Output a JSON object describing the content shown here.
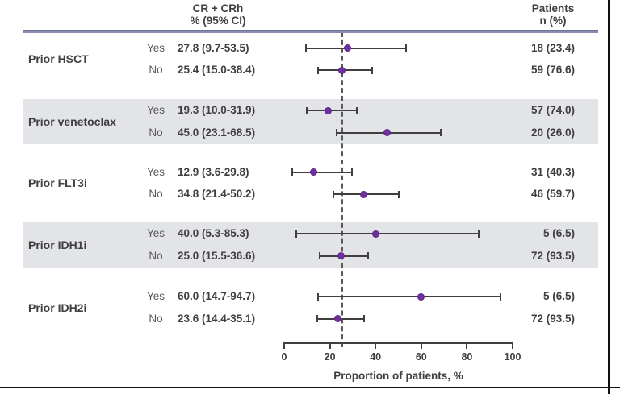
{
  "figure": {
    "value_col_header_line1": "CR + CRh",
    "value_col_header_line2": "% (95% CI)",
    "patients_col_header_line1": "Patients",
    "patients_col_header_line2": "n (%)"
  },
  "chart_data": {
    "type": "forest",
    "xlabel": "Proportion of patients, %",
    "x_ticks": [
      0,
      20,
      40,
      60,
      80,
      100
    ],
    "xlim": [
      0,
      100
    ],
    "reference_line_x": 25.4,
    "grid": false,
    "legend": "none",
    "value_column_header": "CR + CRh % (95% CI)",
    "patients_column_header": "Patients n (%)",
    "groups": [
      {
        "label": "Prior HSCT",
        "shaded": false,
        "rows": [
          {
            "subgroup": "Yes",
            "estimate": 27.8,
            "ci_low": 9.7,
            "ci_high": 53.5,
            "value_label": "27.8 (9.7-53.5)",
            "patients": "18 (23.4)"
          },
          {
            "subgroup": "No",
            "estimate": 25.4,
            "ci_low": 15.0,
            "ci_high": 38.4,
            "value_label": "25.4 (15.0-38.4)",
            "patients": "59 (76.6)"
          }
        ]
      },
      {
        "label": "Prior venetoclax",
        "shaded": true,
        "rows": [
          {
            "subgroup": "Yes",
            "estimate": 19.3,
            "ci_low": 10.0,
            "ci_high": 31.9,
            "value_label": "19.3 (10.0-31.9)",
            "patients": "57 (74.0)"
          },
          {
            "subgroup": "No",
            "estimate": 45.0,
            "ci_low": 23.1,
            "ci_high": 68.5,
            "value_label": "45.0 (23.1-68.5)",
            "patients": "20 (26.0)"
          }
        ]
      },
      {
        "label": "Prior FLT3i",
        "shaded": false,
        "rows": [
          {
            "subgroup": "Yes",
            "estimate": 12.9,
            "ci_low": 3.6,
            "ci_high": 29.8,
            "value_label": "12.9 (3.6-29.8)",
            "patients": "31 (40.3)"
          },
          {
            "subgroup": "No",
            "estimate": 34.8,
            "ci_low": 21.4,
            "ci_high": 50.2,
            "value_label": "34.8 (21.4-50.2)",
            "patients": "46 (59.7)"
          }
        ]
      },
      {
        "label": "Prior IDH1i",
        "shaded": true,
        "rows": [
          {
            "subgroup": "Yes",
            "estimate": 40.0,
            "ci_low": 5.3,
            "ci_high": 85.3,
            "value_label": "40.0 (5.3-85.3)",
            "patients": "5 (6.5)"
          },
          {
            "subgroup": "No",
            "estimate": 25.0,
            "ci_low": 15.5,
            "ci_high": 36.6,
            "value_label": "25.0 (15.5-36.6)",
            "patients": "72 (93.5)"
          }
        ]
      },
      {
        "label": "Prior IDH2i",
        "shaded": false,
        "rows": [
          {
            "subgroup": "Yes",
            "estimate": 60.0,
            "ci_low": 14.7,
            "ci_high": 94.7,
            "value_label": "60.0 (14.7-94.7)",
            "patients": "5 (6.5)"
          },
          {
            "subgroup": "No",
            "estimate": 23.6,
            "ci_low": 14.4,
            "ci_high": 35.1,
            "value_label": "23.6 (14.4-35.1)",
            "patients": "72 (93.5)"
          }
        ]
      }
    ],
    "colors": {
      "marker": "#7030a0",
      "error_bar": "#3f3f3f",
      "shading_band": "#e3e4e7",
      "header_rule": "#8b8db0",
      "reference_line": "#595959"
    }
  }
}
